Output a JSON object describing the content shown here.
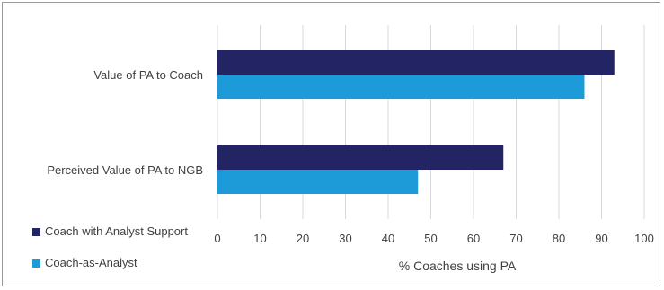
{
  "chart_data": {
    "type": "bar",
    "orientation": "horizontal",
    "categories": [
      "Value of PA to Coach",
      "Perceived Value of PA to NGB"
    ],
    "series": [
      {
        "name": "Coach with Analyst Support",
        "values": [
          93,
          67
        ],
        "color": "#232463"
      },
      {
        "name": "Coach-as-Analyst",
        "values": [
          86,
          47
        ],
        "color": "#1c9bd8"
      }
    ],
    "xlabel": "% Coaches using PA",
    "ylabel": "",
    "xlim": [
      0,
      100
    ],
    "xticks": [
      "0",
      "10",
      "20",
      "30",
      "40",
      "50",
      "60",
      "70",
      "80",
      "90",
      "100"
    ],
    "grid": "vertical",
    "legend_position": "bottom-left"
  }
}
